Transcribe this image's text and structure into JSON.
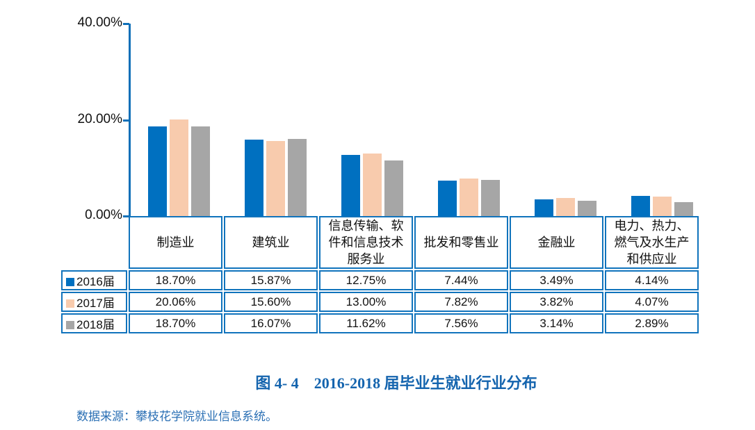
{
  "figure": {
    "caption": "图 4- 4　2016-2018 届毕业生就业行业分布",
    "source": "数据来源：攀枝花学院就业信息系统。"
  },
  "chart_data": {
    "type": "bar",
    "title": "图 4-4 2016-2018 届毕业生就业行业分布",
    "categories": [
      "制造业",
      "建筑业",
      "信息传输、软件和信息技术服务业",
      "批发和零售业",
      "金融业",
      "电力、热力、燃气及水生产和供应业"
    ],
    "series": [
      {
        "name": "2016届",
        "color": "#0070C0",
        "values": [
          18.7,
          15.87,
          12.75,
          7.44,
          3.49,
          4.14
        ]
      },
      {
        "name": "2017届",
        "color": "#F8CBAD",
        "values": [
          20.06,
          15.6,
          13.0,
          7.82,
          3.82,
          4.07
        ]
      },
      {
        "name": "2018届",
        "color": "#A6A6A6",
        "values": [
          18.7,
          16.07,
          11.62,
          7.56,
          3.14,
          2.89
        ]
      }
    ],
    "y_axis": {
      "min": 0,
      "max": 40,
      "ticks": [
        {
          "value": 40,
          "label": "40.00%"
        },
        {
          "value": 20,
          "label": "20.00%"
        },
        {
          "value": 0,
          "label": "0.00%"
        }
      ]
    },
    "value_suffix": "%",
    "gridlines": false,
    "legend_position": "table-left-column"
  },
  "colors": {
    "axis_blue": "#0F70B8",
    "border_blue": "#1073BC",
    "caption_blue": "#1464AE",
    "source_blue": "#2A6FB4"
  }
}
